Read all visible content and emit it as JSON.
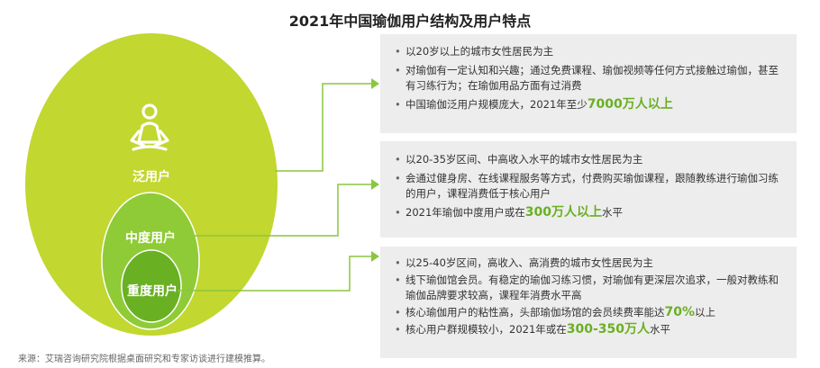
{
  "title": "2021年中国瑜伽用户结构及用户特点",
  "circles": {
    "outer_label": "泛用户",
    "middle_label": "中度用户",
    "inner_label": "重度用户",
    "icon": "yoga-meditation-icon"
  },
  "colors": {
    "outer": "#c2d72f",
    "middle": "#8fcb36",
    "inner": "#6ab023",
    "connector": "#8cc63f",
    "highlight": "#6ab023"
  },
  "panels": [
    {
      "items": [
        {
          "text": "以20岁以上的城市女性居民为主"
        },
        {
          "text": "对瑜伽有一定认知和兴趣；通过免费课程、瑜伽视频等任何方式接触过瑜伽，甚至有习练行为；在瑜伽用品方面有过消费"
        },
        {
          "pre": "中国瑜伽泛用户规模庞大，2021年至少",
          "hl": "7000万人以上",
          "post": ""
        }
      ]
    },
    {
      "items": [
        {
          "text": "以20-35岁区间、中高收入水平的城市女性居民为主"
        },
        {
          "text": "会通过健身房、在线课程服务等方式，付费购买瑜伽课程，跟随教练进行瑜伽习练的用户，课程消费低于核心用户"
        },
        {
          "pre": "2021年瑜伽中度用户或在",
          "hl": "300万人以上",
          "post": "水平"
        }
      ]
    },
    {
      "items": [
        {
          "text": "以25-40岁区间，高收入、高消费的城市女性居民为主"
        },
        {
          "text": "线下瑜伽馆会员。有稳定的瑜伽习练习惯，对瑜伽有更深层次追求，一般对教练和瑜伽品牌要求较高，课程年消费水平高"
        },
        {
          "pre": "核心瑜伽用户的粘性高，头部瑜伽场馆的会员续费率能达",
          "hl": "70%",
          "post": "以上"
        },
        {
          "pre": "核心用户群规模较小，2021年或在",
          "hl": "300-350万人",
          "post": "水平"
        }
      ]
    }
  ],
  "source": "来源：艾瑞咨询研究院根据桌面研究和专家访谈进行建模推算。"
}
